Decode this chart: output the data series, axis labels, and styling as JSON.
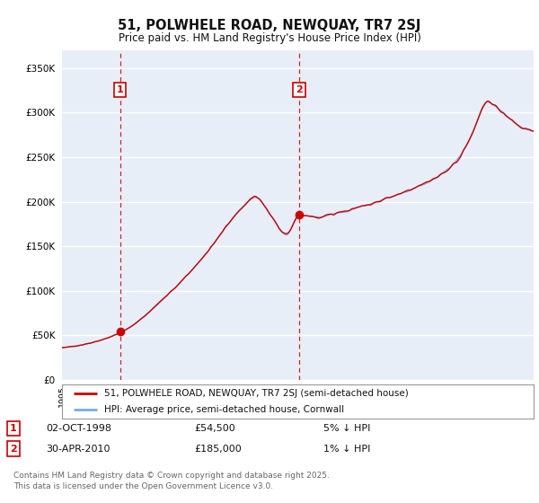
{
  "title1": "51, POLWHELE ROAD, NEWQUAY, TR7 2SJ",
  "title2": "Price paid vs. HM Land Registry's House Price Index (HPI)",
  "legend_label_red": "51, POLWHELE ROAD, NEWQUAY, TR7 2SJ (semi-detached house)",
  "legend_label_blue": "HPI: Average price, semi-detached house, Cornwall",
  "sale1_date": "02-OCT-1998",
  "sale1_price": "£54,500",
  "sale1_note": "5% ↓ HPI",
  "sale2_date": "30-APR-2010",
  "sale2_price": "£185,000",
  "sale2_note": "1% ↓ HPI",
  "footer": "Contains HM Land Registry data © Crown copyright and database right 2025.\nThis data is licensed under the Open Government Licence v3.0.",
  "red_color": "#cc0000",
  "blue_color": "#7aace0",
  "vline_color": "#cc0000",
  "bg_color": "#e8eef8",
  "grid_color": "#ffffff",
  "ylim": [
    0,
    370000
  ],
  "yticks": [
    0,
    50000,
    100000,
    150000,
    200000,
    250000,
    300000,
    350000
  ],
  "sale1_x": 1998.75,
  "sale1_y": 54500,
  "sale2_x": 2010.33,
  "sale2_y": 185000,
  "xmin": 1995.0,
  "xmax": 2025.5
}
